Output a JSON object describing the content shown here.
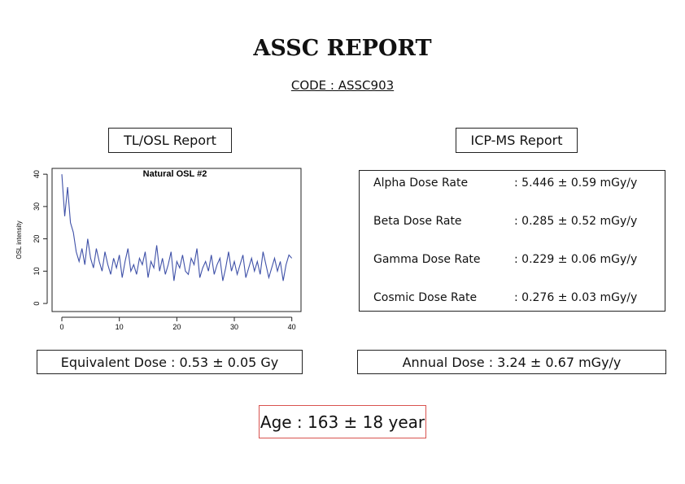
{
  "header": {
    "title": "ASSC REPORT",
    "code": "CODE : ASSC903"
  },
  "tl_osl": {
    "label": "TL/OSL Report",
    "equivalent_dose": "Equivalent Dose : 0.53 ± 0.05 Gy"
  },
  "chart_data": {
    "type": "line",
    "title": "Natural OSL #2",
    "y_label": "OSL intensity",
    "color": "#3f51a8",
    "x": [
      0,
      0.5,
      1,
      1.5,
      2,
      2.5,
      3,
      3.5,
      4,
      4.5,
      5,
      5.5,
      6,
      6.5,
      7,
      7.5,
      8,
      8.5,
      9,
      9.5,
      10,
      10.5,
      11,
      11.5,
      12,
      12.5,
      13,
      13.5,
      14,
      14.5,
      15,
      15.5,
      16,
      16.5,
      17,
      17.5,
      18,
      18.5,
      19,
      19.5,
      20,
      20.5,
      21,
      21.5,
      22,
      22.5,
      23,
      23.5,
      24,
      24.5,
      25,
      25.5,
      26,
      26.5,
      27,
      27.5,
      28,
      28.5,
      29,
      29.5,
      30,
      30.5,
      31,
      31.5,
      32,
      32.5,
      33,
      33.5,
      34,
      34.5,
      35,
      35.5,
      36,
      36.5,
      37,
      37.5,
      38,
      38.5,
      39,
      39.5,
      40
    ],
    "values": [
      40,
      27,
      36,
      25,
      22,
      16,
      13,
      17,
      12,
      20,
      14,
      11,
      17,
      13,
      10,
      16,
      12,
      9,
      14,
      11,
      15,
      8,
      13,
      17,
      10,
      12,
      9,
      14,
      12,
      16,
      8,
      13,
      11,
      18,
      10,
      14,
      9,
      12,
      16,
      7,
      13,
      11,
      15,
      10,
      9,
      14,
      12,
      17,
      8,
      11,
      13,
      10,
      15,
      9,
      12,
      14,
      7,
      11,
      16,
      10,
      13,
      9,
      12,
      15,
      8,
      11,
      14,
      10,
      13,
      9,
      16,
      12,
      8,
      11,
      14,
      10,
      13,
      7,
      12,
      15,
      14
    ],
    "xlim": [
      -1.7,
      41.6
    ],
    "ylim": [
      -2.5,
      41.8
    ],
    "xticks": [
      0,
      10,
      20,
      30,
      40
    ],
    "yticks": [
      0,
      10,
      20,
      30,
      40
    ]
  },
  "icp_ms": {
    "label": "ICP-MS Report",
    "rows": [
      {
        "label": "Alpha Dose Rate",
        "value": ": 5.446 ± 0.59 mGy/y"
      },
      {
        "label": "Beta Dose Rate",
        "value": ": 0.285 ± 0.52 mGy/y"
      },
      {
        "label": "Gamma Dose Rate",
        "value": ": 0.229 ± 0.06 mGy/y"
      },
      {
        "label": "Cosmic Dose Rate",
        "value": ": 0.276 ± 0.03 mGy/y"
      }
    ],
    "annual_dose": "Annual Dose : 3.24 ± 0.67 mGy/y"
  },
  "age": "Age : 163 ± 18 year"
}
